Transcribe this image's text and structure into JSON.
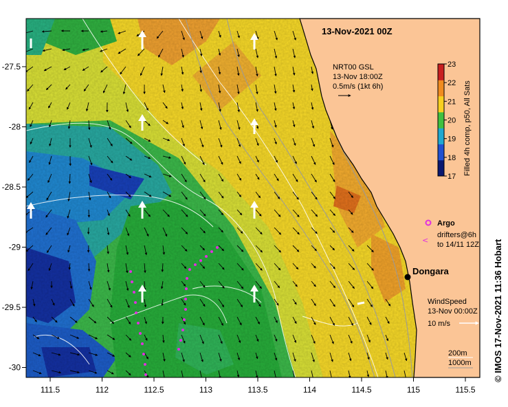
{
  "title": "13-Nov-2021 00Z",
  "current_legend": {
    "line1": "NRT00 GSL",
    "line2": "13-Nov 18:00Z",
    "line3": "0.5m/s (1kt 6h)"
  },
  "colorbar": {
    "label": "Filled 4h comp, p50, All Sats",
    "ticks": [
      "23",
      "22",
      "21",
      "20",
      "19",
      "18",
      "17"
    ],
    "colors": [
      "#c82020",
      "#f08c20",
      "#f8d020",
      "#40c040",
      "#20a8d0",
      "#2050d0",
      "#0a1870"
    ]
  },
  "argo": {
    "label": "Argo",
    "drifters_line1": "drifters@6h",
    "drifters_line2": "to 14/11 12Z"
  },
  "wind_legend": {
    "line1": "WindSpeed",
    "line2": "13-Nov 00:00Z",
    "line3": "10 m/s"
  },
  "bathymetry_legend": {
    "line1": "200m",
    "line2": "1000m"
  },
  "place": "Dongara",
  "credit": "© IMOS 17-Nov-2021 11:36 Hobart",
  "x_ticks": [
    "111.5",
    "112",
    "112.5",
    "113",
    "113.5",
    "114",
    "114.5",
    "115",
    "115.5"
  ],
  "y_ticks": [
    "-27.5",
    "-28",
    "-28.5",
    "-29",
    "-29.5",
    "-30"
  ],
  "colors": {
    "land": "#fbc596",
    "argo": "#e030e0",
    "coast": "#000000"
  }
}
